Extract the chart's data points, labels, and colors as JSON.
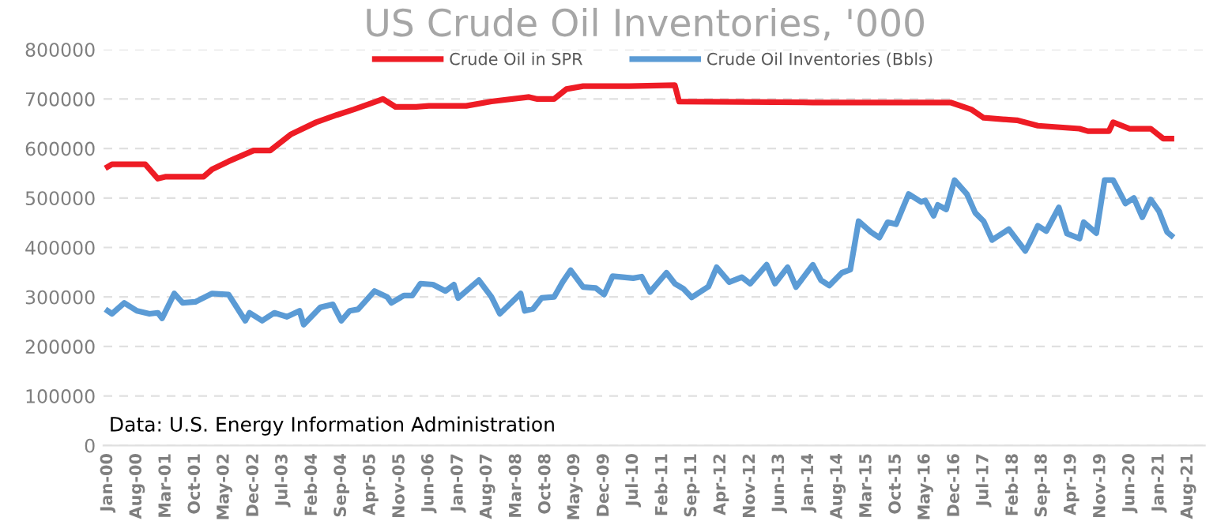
{
  "chart_data": {
    "type": "line",
    "title": "US Crude Oil Inventories, '000",
    "annotations": [
      "Data: U.S. Energy Information Administration"
    ],
    "xlim": [
      "1999-12",
      "2021-12"
    ],
    "xticks": [
      {
        "value": "2000-01",
        "label": "Jan-00"
      },
      {
        "value": "2000-08",
        "label": "Aug-00"
      },
      {
        "value": "2001-03",
        "label": "Mar-01"
      },
      {
        "value": "2001-10",
        "label": "Oct-01"
      },
      {
        "value": "2002-05",
        "label": "May-02"
      },
      {
        "value": "2002-12",
        "label": "Dec-02"
      },
      {
        "value": "2003-07",
        "label": "Jul-03"
      },
      {
        "value": "2004-02",
        "label": "Feb-04"
      },
      {
        "value": "2004-09",
        "label": "Sep-04"
      },
      {
        "value": "2005-04",
        "label": "Apr-05"
      },
      {
        "value": "2005-11",
        "label": "Nov-05"
      },
      {
        "value": "2006-06",
        "label": "Jun-06"
      },
      {
        "value": "2007-01",
        "label": "Jan-07"
      },
      {
        "value": "2007-08",
        "label": "Aug-07"
      },
      {
        "value": "2008-03",
        "label": "Mar-08"
      },
      {
        "value": "2008-10",
        "label": "Oct-08"
      },
      {
        "value": "2009-05",
        "label": "May-09"
      },
      {
        "value": "2009-12",
        "label": "Dec-09"
      },
      {
        "value": "2010-07",
        "label": "Jul-10"
      },
      {
        "value": "2011-02",
        "label": "Feb-11"
      },
      {
        "value": "2011-09",
        "label": "Sep-11"
      },
      {
        "value": "2012-04",
        "label": "Apr-12"
      },
      {
        "value": "2012-11",
        "label": "Nov-12"
      },
      {
        "value": "2013-06",
        "label": "Jun-13"
      },
      {
        "value": "2014-01",
        "label": "Jan-14"
      },
      {
        "value": "2014-08",
        "label": "Aug-14"
      },
      {
        "value": "2015-03",
        "label": "Mar-15"
      },
      {
        "value": "2015-10",
        "label": "Oct-15"
      },
      {
        "value": "2016-05",
        "label": "May-16"
      },
      {
        "value": "2016-12",
        "label": "Dec-16"
      },
      {
        "value": "2017-07",
        "label": "Jul-17"
      },
      {
        "value": "2018-02",
        "label": "Feb-18"
      },
      {
        "value": "2018-09",
        "label": "Sep-18"
      },
      {
        "value": "2019-04",
        "label": "Apr-19"
      },
      {
        "value": "2019-11",
        "label": "Nov-19"
      },
      {
        "value": "2020-06",
        "label": "Jun-20"
      },
      {
        "value": "2021-01",
        "label": "Jan-21"
      },
      {
        "value": "2021-08",
        "label": "Aug-21"
      }
    ],
    "ylim": [
      0,
      800000
    ],
    "yticks": [
      0,
      100000,
      200000,
      300000,
      400000,
      500000,
      600000,
      700000,
      800000
    ],
    "grid": "y",
    "legend": "top",
    "line_style": "solid",
    "marker": "none",
    "series": [
      {
        "name": "Crude Oil in SPR",
        "color": "#ee1c25",
        "x": [
          "2000-01",
          "2000-02",
          "2000-10",
          "2001-01",
          "2001-03",
          "2001-12",
          "2002-02",
          "2002-06",
          "2002-12",
          "2003-04",
          "2003-09",
          "2004-03",
          "2004-08",
          "2004-12",
          "2005-06",
          "2005-07",
          "2005-10",
          "2006-03",
          "2006-06",
          "2007-03",
          "2007-09",
          "2008-06",
          "2008-08",
          "2008-12",
          "2009-03",
          "2009-07",
          "2010-06",
          "2011-05",
          "2011-06",
          "2014-02",
          "2016-11",
          "2017-04",
          "2017-07",
          "2018-03",
          "2018-08",
          "2019-06",
          "2019-08",
          "2020-01",
          "2020-02",
          "2020-06",
          "2020-11",
          "2021-02",
          "2021-04"
        ],
        "values": [
          563000,
          568000,
          568000,
          539000,
          543000,
          543000,
          558000,
          574000,
          596000,
          596000,
          629000,
          653000,
          668000,
          679000,
          697000,
          700000,
          684000,
          684000,
          686000,
          686000,
          695000,
          704000,
          700000,
          700000,
          720000,
          726000,
          726000,
          728000,
          695000,
          693000,
          693000,
          679000,
          662000,
          657000,
          646000,
          640000,
          635000,
          635000,
          653000,
          640000,
          640000,
          620000,
          620000
        ]
      },
      {
        "name": "Crude Oil Inventories (Bbls)",
        "color": "#5b9bd5",
        "x": [
          "2000-01",
          "2000-02",
          "2000-05",
          "2000-08",
          "2000-11",
          "2001-01",
          "2001-02",
          "2001-05",
          "2001-07",
          "2001-10",
          "2002-02",
          "2002-06",
          "2002-10",
          "2002-11",
          "2003-02",
          "2003-05",
          "2003-08",
          "2003-11",
          "2003-12",
          "2004-04",
          "2004-07",
          "2004-09",
          "2004-11",
          "2005-01",
          "2005-05",
          "2005-08",
          "2005-09",
          "2005-12",
          "2006-02",
          "2006-04",
          "2006-07",
          "2006-10",
          "2006-12",
          "2007-01",
          "2007-06",
          "2007-09",
          "2007-11",
          "2008-04",
          "2008-05",
          "2008-07",
          "2008-09",
          "2008-12",
          "2009-02",
          "2009-04",
          "2009-07",
          "2009-10",
          "2009-12",
          "2010-02",
          "2010-07",
          "2010-09",
          "2010-11",
          "2011-03",
          "2011-05",
          "2011-07",
          "2011-09",
          "2012-01",
          "2012-03",
          "2012-06",
          "2012-09",
          "2012-11",
          "2013-03",
          "2013-05",
          "2013-08",
          "2013-10",
          "2014-02",
          "2014-04",
          "2014-06",
          "2014-09",
          "2014-11",
          "2015-01",
          "2015-04",
          "2015-06",
          "2015-08",
          "2015-10",
          "2016-01",
          "2016-04",
          "2016-05",
          "2016-07",
          "2016-08",
          "2016-10",
          "2016-12",
          "2017-03",
          "2017-05",
          "2017-07",
          "2017-09",
          "2018-01",
          "2018-05",
          "2018-06",
          "2018-08",
          "2018-10",
          "2019-01",
          "2019-03",
          "2019-06",
          "2019-07",
          "2019-10",
          "2019-12",
          "2020-02",
          "2020-05",
          "2020-07",
          "2020-09",
          "2020-11",
          "2021-01",
          "2021-03",
          "2021-04"
        ],
        "values": [
          272000,
          266000,
          288000,
          272000,
          266000,
          268000,
          257000,
          307000,
          288000,
          290000,
          307000,
          305000,
          252000,
          268000,
          252000,
          268000,
          260000,
          272000,
          244000,
          279000,
          285000,
          252000,
          272000,
          275000,
          312000,
          300000,
          288000,
          303000,
          303000,
          327000,
          325000,
          312000,
          325000,
          298000,
          334000,
          300000,
          266000,
          307000,
          272000,
          276000,
          298000,
          300000,
          330000,
          354000,
          320000,
          318000,
          305000,
          342000,
          338000,
          341000,
          310000,
          349000,
          327000,
          317000,
          299000,
          321000,
          360000,
          330000,
          340000,
          327000,
          365000,
          327000,
          360000,
          320000,
          365000,
          334000,
          323000,
          349000,
          355000,
          453000,
          431000,
          420000,
          451000,
          447000,
          508000,
          492000,
          495000,
          464000,
          486000,
          477000,
          536000,
          508000,
          470000,
          453000,
          415000,
          437000,
          393000,
          409000,
          444000,
          433000,
          481000,
          428000,
          418000,
          451000,
          429000,
          536000,
          536000,
          489000,
          500000,
          461000,
          497000,
          473000,
          431000,
          424000
        ]
      }
    ]
  }
}
